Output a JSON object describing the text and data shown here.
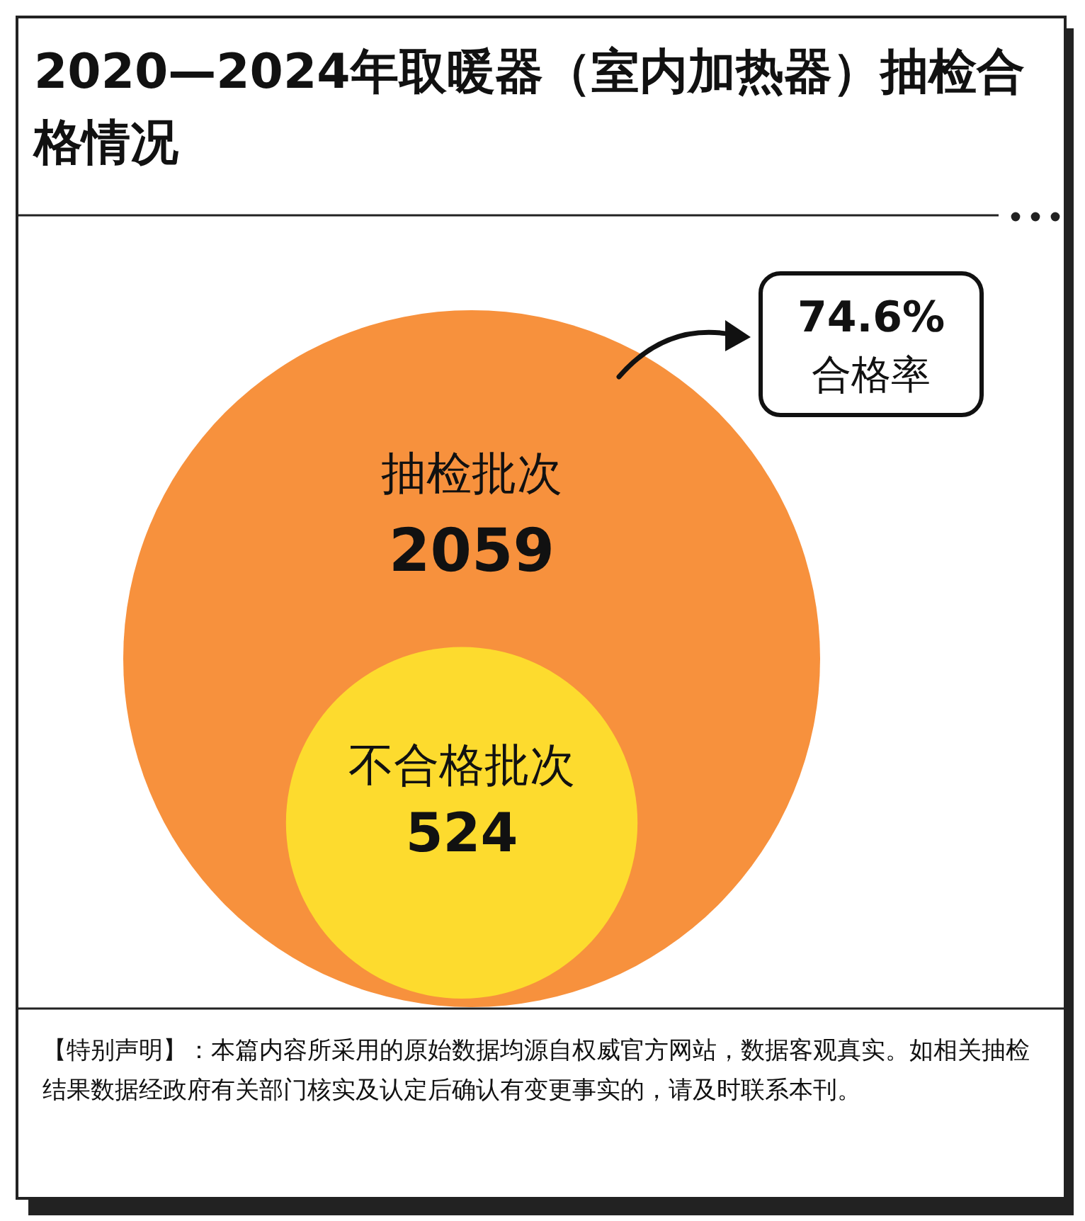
{
  "chart_data": {
    "type": "other",
    "title": "2020—2024年取暖器（室内加热器）抽检合格情况",
    "categories": [
      "抽检批次",
      "不合格批次"
    ],
    "values": [
      2059,
      524
    ],
    "data_labels": true,
    "colors": [
      "#f7913d",
      "#fddb2e"
    ],
    "annotations": [
      "74.6%",
      "合格率",
      "【特别声明】：本篇内容所采用的原始数据均源自权威官方网站，数据客观真实。如相关抽检结果数据经政府有关部门核实及认定后确认有变更事实的，请及时联系本刊。"
    ]
  }
}
